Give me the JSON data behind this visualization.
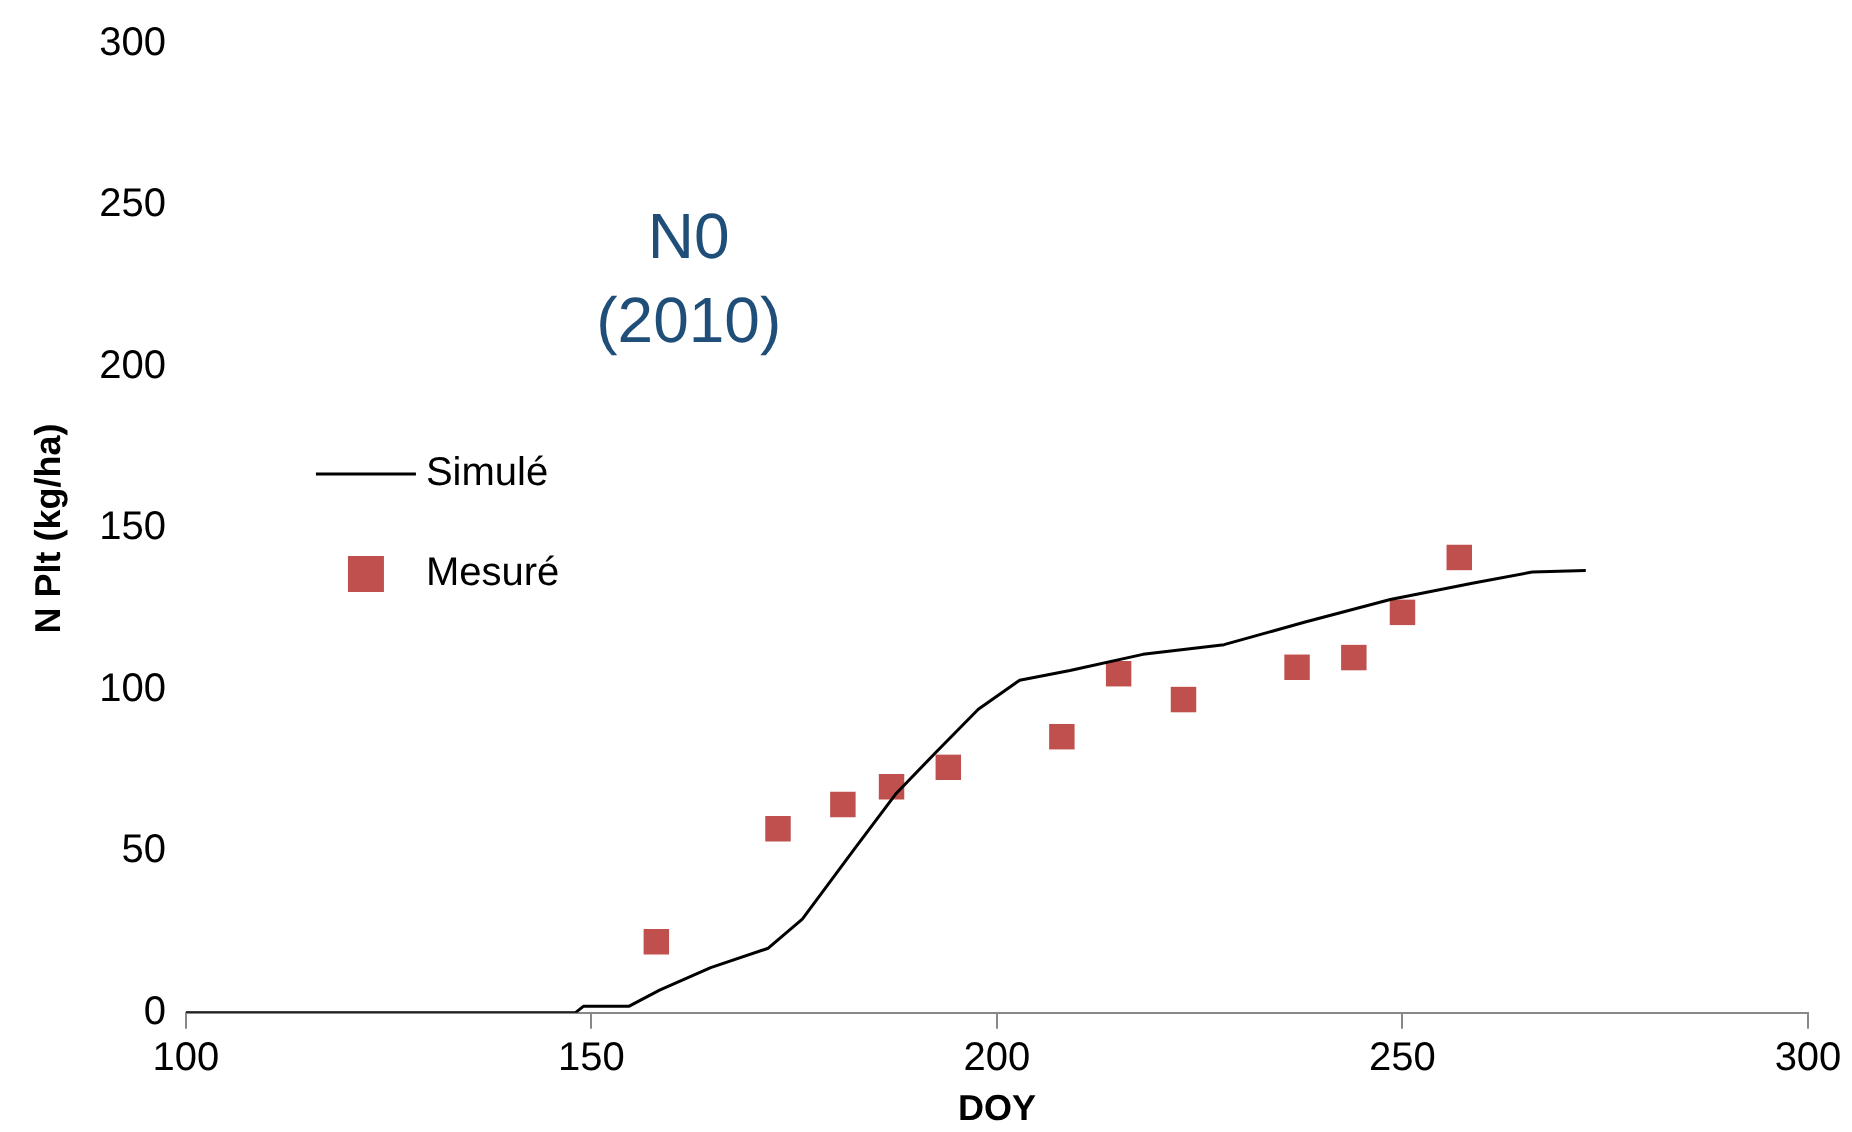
{
  "chart_data": {
    "type": "scatter",
    "xlabel": "DOY",
    "ylabel": "N Plt (kg/ha)",
    "annotations": [
      "N0\n(2010)"
    ],
    "xlim": [
      100,
      300
    ],
    "xticks": [
      100,
      150,
      200,
      250,
      300
    ],
    "ylim": [
      0,
      300
    ],
    "yticks": [
      0,
      50,
      100,
      150,
      200,
      250,
      300
    ],
    "grid": false,
    "legend": "left",
    "series": [
      {
        "name": "Simulé",
        "type": "line",
        "color": "#000000",
        "marker": "none",
        "x": [
          100,
          148,
          149,
          154.6,
          158.4,
          164.7,
          171.8,
          176,
          182.5,
          187.6,
          192.6,
          197.7,
          202.8,
          209,
          218,
          228,
          238,
          248.5,
          258.6,
          266,
          272.6
        ],
        "values": [
          0,
          0,
          2,
          2,
          7,
          14,
          20,
          29,
          51,
          68,
          81,
          94,
          103,
          106,
          111,
          114,
          121,
          128,
          133,
          136.5,
          137
        ]
      },
      {
        "name": "Mesuré",
        "color": "#c0504d",
        "marker": "square",
        "x": [
          158,
          173,
          181,
          187,
          194,
          208,
          215,
          223,
          237,
          244,
          250,
          257
        ],
        "values": [
          22,
          57,
          64.5,
          70,
          76,
          85.5,
          105,
          97,
          107,
          110,
          124,
          141
        ]
      }
    ]
  }
}
